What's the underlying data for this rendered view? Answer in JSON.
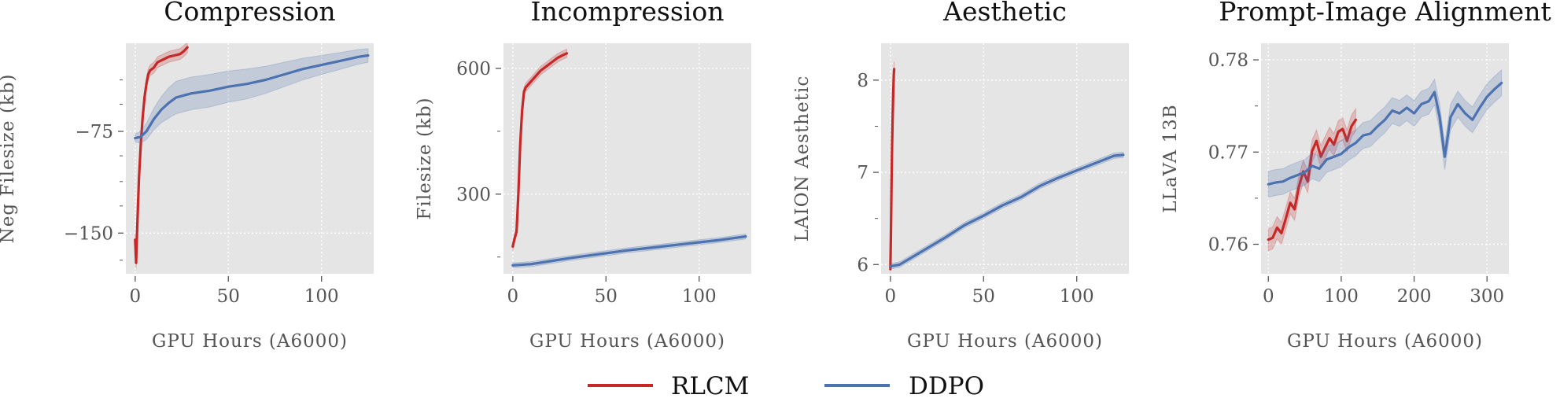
{
  "legend": [
    {
      "name": "RLCM",
      "color": "#c62828"
    },
    {
      "name": "DDPO",
      "color": "#4c72b0"
    }
  ],
  "chart_data": [
    {
      "type": "line",
      "title": "Compression",
      "xlabel": "GPU Hours (A6000)",
      "ylabel": "Neg Filesize (kb)",
      "xlim": [
        -5,
        128
      ],
      "ylim": [
        -180,
        -10
      ],
      "xticks": [
        {
          "v": 0,
          "label": "0"
        },
        {
          "v": 50,
          "label": "50"
        },
        {
          "v": 100,
          "label": "100"
        }
      ],
      "yticks": [
        {
          "v": -150,
          "label": "−150"
        },
        {
          "v": -75,
          "label": "−75"
        }
      ],
      "yminor": [
        -170,
        -130,
        -112,
        -93,
        -55,
        -37
      ],
      "series": [
        {
          "name": "RLCM",
          "band": 4,
          "x": [
            0,
            0.5,
            1,
            1.5,
            2,
            3,
            4,
            5,
            6,
            7,
            8,
            10,
            12,
            15,
            18,
            21,
            24,
            26,
            28
          ],
          "y": [
            -155,
            -172,
            -150,
            -130,
            -110,
            -85,
            -65,
            -50,
            -40,
            -33,
            -30,
            -28,
            -24,
            -22,
            -20,
            -19,
            -18,
            -16,
            -13
          ]
        },
        {
          "name": "DDPO",
          "band_points": [
            [
              0,
              3
            ],
            [
              10,
              8
            ],
            [
              20,
              12
            ],
            [
              40,
              12
            ],
            [
              60,
              11
            ],
            [
              80,
              9
            ],
            [
              100,
              7
            ],
            [
              125,
              5
            ]
          ],
          "x": [
            0,
            3,
            6,
            10,
            14,
            18,
            22,
            30,
            40,
            50,
            60,
            70,
            80,
            90,
            100,
            110,
            120,
            125
          ],
          "y": [
            -80,
            -79,
            -75,
            -66,
            -59,
            -54,
            -50,
            -47,
            -45,
            -42,
            -40,
            -37,
            -33,
            -29,
            -26,
            -23,
            -20,
            -19
          ]
        }
      ]
    },
    {
      "type": "line",
      "title": "Incompression",
      "xlabel": "GPU Hours (A6000)",
      "ylabel": "Filesize (kb)",
      "xlim": [
        -5,
        128
      ],
      "ylim": [
        110,
        660
      ],
      "xticks": [
        {
          "v": 0,
          "label": "0"
        },
        {
          "v": 50,
          "label": "50"
        },
        {
          "v": 100,
          "label": "100"
        }
      ],
      "yticks": [
        {
          "v": 300,
          "label": "300"
        },
        {
          "v": 600,
          "label": "600"
        }
      ],
      "yminor": [
        150,
        450
      ],
      "series": [
        {
          "name": "RLCM",
          "band": 10,
          "x": [
            0,
            1,
            2,
            3,
            4,
            5,
            6,
            7,
            8,
            10,
            12,
            15,
            18,
            21,
            24,
            27,
            29
          ],
          "y": [
            175,
            195,
            210,
            300,
            420,
            500,
            545,
            555,
            560,
            570,
            580,
            595,
            605,
            615,
            625,
            632,
            636
          ]
        },
        {
          "name": "DDPO",
          "band": 6,
          "x": [
            0,
            10,
            20,
            30,
            40,
            50,
            60,
            70,
            80,
            90,
            100,
            110,
            120,
            125
          ],
          "y": [
            130,
            133,
            140,
            147,
            153,
            159,
            165,
            170,
            175,
            180,
            185,
            190,
            196,
            199
          ]
        }
      ]
    },
    {
      "type": "line",
      "title": "Aesthetic",
      "xlabel": "GPU Hours (A6000)",
      "ylabel": "LAION Aesthetic",
      "xlim": [
        -5,
        128
      ],
      "ylim": [
        5.9,
        8.4
      ],
      "xticks": [
        {
          "v": 0,
          "label": "0"
        },
        {
          "v": 50,
          "label": "50"
        },
        {
          "v": 100,
          "label": "100"
        }
      ],
      "yticks": [
        {
          "v": 6,
          "label": "6"
        },
        {
          "v": 7,
          "label": "7"
        },
        {
          "v": 8,
          "label": "8"
        }
      ],
      "yminor": [
        6.5,
        7.5
      ],
      "series": [
        {
          "name": "RLCM",
          "band": 0.08,
          "x": [
            0,
            0.3,
            0.6,
            0.9,
            1.2,
            1.5,
            1.8,
            2.0
          ],
          "y": [
            5.95,
            6.4,
            6.9,
            7.3,
            7.6,
            7.85,
            8.05,
            8.12
          ]
        },
        {
          "name": "DDPO",
          "band": 0.03,
          "x": [
            0,
            5,
            10,
            20,
            30,
            40,
            50,
            60,
            70,
            80,
            90,
            100,
            110,
            120,
            125
          ],
          "y": [
            5.98,
            6.0,
            6.06,
            6.18,
            6.3,
            6.43,
            6.53,
            6.64,
            6.73,
            6.85,
            6.94,
            7.02,
            7.1,
            7.18,
            7.19
          ]
        }
      ]
    },
    {
      "type": "line",
      "title": "Prompt-Image Alignment",
      "xlabel": "GPU Hours (A6000)",
      "ylabel": "LLaVA 13B",
      "xlim": [
        -10,
        330
      ],
      "ylim": [
        0.7568,
        0.7818
      ],
      "xticks": [
        {
          "v": 0,
          "label": "0"
        },
        {
          "v": 100,
          "label": "100"
        },
        {
          "v": 200,
          "label": "200"
        },
        {
          "v": 300,
          "label": "300"
        }
      ],
      "yticks": [
        {
          "v": 0.76,
          "label": "0.76"
        },
        {
          "v": 0.77,
          "label": "0.77"
        },
        {
          "v": 0.78,
          "label": "0.78"
        }
      ],
      "yminor": [
        0.765,
        0.775
      ],
      "series": [
        {
          "name": "RLCM",
          "band": 0.0012,
          "x": [
            0,
            6,
            12,
            18,
            24,
            30,
            36,
            42,
            48,
            54,
            60,
            66,
            72,
            78,
            84,
            90,
            96,
            102,
            108,
            114,
            120
          ],
          "y": [
            0.7605,
            0.7607,
            0.7618,
            0.7612,
            0.7628,
            0.7645,
            0.7638,
            0.7663,
            0.7679,
            0.7668,
            0.7701,
            0.7712,
            0.7695,
            0.7705,
            0.7715,
            0.7708,
            0.7722,
            0.7725,
            0.7712,
            0.7728,
            0.7735
          ]
        },
        {
          "name": "DDPO",
          "band": 0.0014,
          "x": [
            0,
            10,
            20,
            30,
            40,
            50,
            60,
            70,
            80,
            90,
            100,
            110,
            120,
            130,
            140,
            150,
            160,
            170,
            180,
            190,
            200,
            210,
            220,
            228,
            235,
            242,
            250,
            260,
            270,
            280,
            290,
            300,
            310,
            320
          ],
          "y": [
            0.7665,
            0.7667,
            0.7668,
            0.7672,
            0.7675,
            0.7678,
            0.7685,
            0.7682,
            0.7692,
            0.7695,
            0.7698,
            0.7705,
            0.771,
            0.7718,
            0.772,
            0.7728,
            0.7735,
            0.7745,
            0.7742,
            0.7748,
            0.7742,
            0.7752,
            0.7755,
            0.7765,
            0.7738,
            0.7695,
            0.7738,
            0.7752,
            0.7742,
            0.7735,
            0.7748,
            0.776,
            0.7768,
            0.7775
          ]
        }
      ]
    }
  ]
}
